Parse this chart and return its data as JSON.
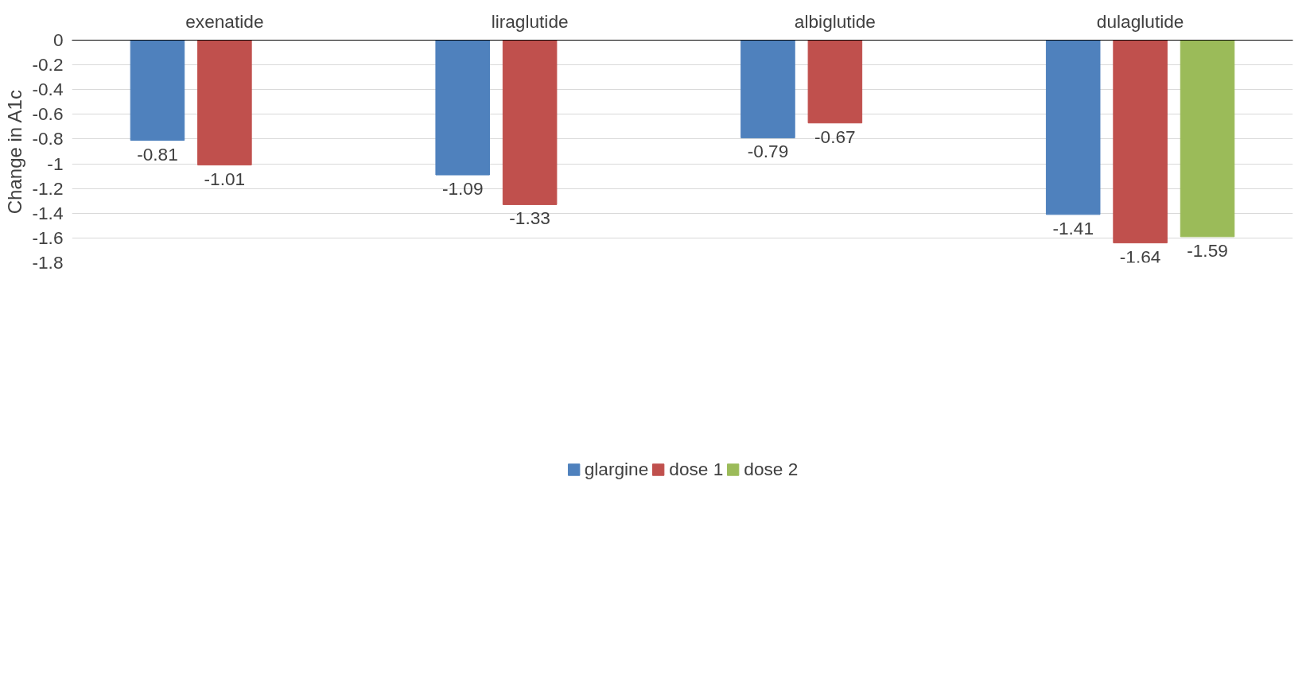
{
  "chart_data": {
    "type": "bar",
    "ylabel": "Change in A1c",
    "categories": [
      "exenatide",
      "liraglutide",
      "albiglutide",
      "dulaglutide"
    ],
    "series": [
      {
        "name": "glargine",
        "color": "#4f81bd",
        "values": [
          -0.81,
          -1.09,
          -0.79,
          -1.41
        ]
      },
      {
        "name": "dose 1",
        "color": "#c0504d",
        "values": [
          -1.01,
          -1.33,
          -0.67,
          -1.64
        ]
      },
      {
        "name": "dose 2",
        "color": "#9bbb59",
        "values": [
          null,
          null,
          null,
          -1.59
        ]
      }
    ],
    "ylim": [
      -1.8,
      0
    ],
    "yticks": [
      0,
      -0.2,
      -0.4,
      -0.6,
      -0.8,
      -1,
      -1.2,
      -1.4,
      -1.6,
      -1.8
    ],
    "grid": "y",
    "legend": "bottom",
    "data_labels": true
  }
}
